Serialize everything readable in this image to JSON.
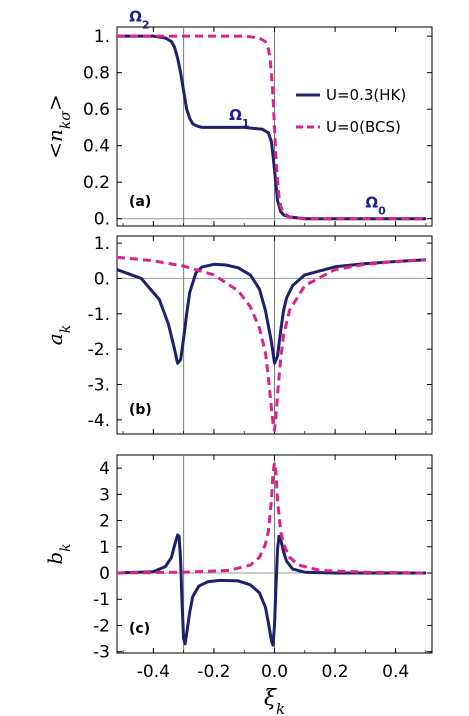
{
  "chart_data": [
    {
      "type": "line",
      "panel_label": "(a)",
      "ylabel_main": "<n",
      "ylabel_sub": "kσ",
      "ylabel_end": ">",
      "xlim": [
        -0.52,
        0.52
      ],
      "ylim": [
        -0.04,
        1.05
      ],
      "xticks": [
        -0.4,
        -0.2,
        0.0,
        0.2,
        0.4
      ],
      "yticks": [
        0.0,
        0.2,
        0.4,
        0.6,
        0.8,
        1.0
      ],
      "ytick_labels": [
        "0.",
        "0.2",
        "0.4",
        "0.6",
        "0.8",
        "1."
      ],
      "vlines": [
        -0.3,
        0.0
      ],
      "region_labels": [
        {
          "main": "Ω",
          "sub": "2",
          "x": -0.48,
          "y": 1.08
        },
        {
          "main": "Ω",
          "sub": "1",
          "x": -0.15,
          "y": 0.54
        },
        {
          "main": "Ω",
          "sub": "0",
          "x": 0.3,
          "y": 0.06
        }
      ],
      "legend": {
        "placement": "right",
        "entries": [
          "U=0.3(HK)",
          "U=0(BCS)"
        ]
      },
      "series": [
        {
          "name": "U=0.3(HK)",
          "color": "#1f1f6e",
          "dash": "solid",
          "x": [
            -0.52,
            -0.4,
            -0.36,
            -0.34,
            -0.33,
            -0.32,
            -0.31,
            -0.3,
            -0.29,
            -0.28,
            -0.27,
            -0.26,
            -0.24,
            -0.2,
            -0.1,
            -0.04,
            -0.02,
            -0.01,
            0.0,
            0.01,
            0.02,
            0.03,
            0.05,
            0.1,
            0.2,
            0.3,
            0.4,
            0.5
          ],
          "y": [
            1.0,
            1.0,
            0.99,
            0.97,
            0.94,
            0.88,
            0.8,
            0.7,
            0.6,
            0.55,
            0.52,
            0.51,
            0.5,
            0.5,
            0.5,
            0.49,
            0.47,
            0.42,
            0.27,
            0.1,
            0.04,
            0.02,
            0.01,
            0.0,
            0.0,
            0.0,
            0.0,
            0.0
          ]
        },
        {
          "name": "U=0(BCS)",
          "color": "#d9248b",
          "dash": "dashed",
          "x": [
            -0.52,
            -0.3,
            -0.1,
            -0.05,
            -0.03,
            -0.02,
            -0.015,
            -0.01,
            -0.005,
            0.0,
            0.005,
            0.01,
            0.015,
            0.02,
            0.03,
            0.05,
            0.1,
            0.3,
            0.5
          ],
          "y": [
            1.0,
            1.0,
            1.0,
            0.99,
            0.97,
            0.93,
            0.88,
            0.79,
            0.67,
            0.5,
            0.33,
            0.21,
            0.12,
            0.07,
            0.03,
            0.01,
            0.0,
            0.0,
            0.0
          ]
        }
      ]
    },
    {
      "type": "line",
      "panel_label": "(b)",
      "ylabel_main": "a",
      "ylabel_sub": "k",
      "xlim": [
        -0.52,
        0.52
      ],
      "ylim": [
        -4.4,
        1.2
      ],
      "xticks": [
        -0.4,
        -0.2,
        0.0,
        0.2,
        0.4
      ],
      "yticks": [
        -4,
        -3,
        -2,
        -1,
        0,
        1
      ],
      "ytick_labels": [
        "-4.",
        "-3.",
        "-2.",
        "-1.",
        "0.",
        "1."
      ],
      "vlines": [
        -0.3,
        0.0
      ],
      "series": [
        {
          "name": "U=0.3(HK)",
          "color": "#1f1f6e",
          "dash": "solid",
          "x": [
            -0.52,
            -0.44,
            -0.38,
            -0.35,
            -0.33,
            -0.32,
            -0.31,
            -0.3,
            -0.29,
            -0.28,
            -0.26,
            -0.24,
            -0.2,
            -0.16,
            -0.12,
            -0.08,
            -0.05,
            -0.03,
            -0.01,
            0.0,
            0.01,
            0.02,
            0.03,
            0.04,
            0.06,
            0.1,
            0.2,
            0.3,
            0.4,
            0.5
          ],
          "y": [
            0.25,
            0.0,
            -0.6,
            -1.3,
            -2.0,
            -2.4,
            -2.3,
            -1.7,
            -1.0,
            -0.4,
            0.15,
            0.32,
            0.4,
            0.38,
            0.3,
            0.1,
            -0.3,
            -0.9,
            -1.8,
            -2.4,
            -2.2,
            -1.5,
            -0.9,
            -0.55,
            -0.2,
            0.1,
            0.33,
            0.42,
            0.48,
            0.53
          ]
        },
        {
          "name": "U=0(BCS)",
          "color": "#d9248b",
          "dash": "dashed",
          "x": [
            -0.52,
            -0.4,
            -0.3,
            -0.2,
            -0.12,
            -0.08,
            -0.05,
            -0.03,
            -0.02,
            -0.01,
            -0.005,
            0.0,
            0.005,
            0.01,
            0.02,
            0.03,
            0.05,
            0.1,
            0.2,
            0.3,
            0.4,
            0.5
          ],
          "y": [
            0.6,
            0.5,
            0.35,
            0.1,
            -0.35,
            -0.8,
            -1.4,
            -2.1,
            -2.8,
            -3.7,
            -4.1,
            -4.3,
            -3.9,
            -3.3,
            -2.3,
            -1.6,
            -0.9,
            -0.2,
            0.25,
            0.4,
            0.48,
            0.53
          ]
        }
      ]
    },
    {
      "type": "line",
      "panel_label": "(c)",
      "ylabel_main": "b",
      "ylabel_sub": "k",
      "xlabel_main": "ξ",
      "xlabel_sub": "k",
      "xlim": [
        -0.52,
        0.52
      ],
      "ylim": [
        -3.05,
        4.5
      ],
      "xticks": [
        -0.4,
        -0.2,
        0.0,
        0.2,
        0.4
      ],
      "xtick_labels": [
        "-0.4",
        "-0.2",
        "0.0",
        "0.2",
        "0.4"
      ],
      "yticks": [
        -3,
        -2,
        -1,
        0,
        1,
        2,
        3,
        4
      ],
      "ytick_labels": [
        "-3",
        "-2",
        "-1",
        "0",
        "1",
        "2",
        "3",
        "4"
      ],
      "vlines": [
        -0.3,
        0.0
      ],
      "series": [
        {
          "name": "U=0.3(HK)",
          "color": "#1f1f6e",
          "dash": "solid",
          "x": [
            -0.52,
            -0.4,
            -0.36,
            -0.34,
            -0.33,
            -0.32,
            -0.315,
            -0.31,
            -0.305,
            -0.3,
            -0.295,
            -0.29,
            -0.28,
            -0.27,
            -0.25,
            -0.22,
            -0.18,
            -0.12,
            -0.08,
            -0.05,
            -0.03,
            -0.02,
            -0.01,
            -0.005,
            0.0,
            0.005,
            0.01,
            0.015,
            0.02,
            0.03,
            0.04,
            0.06,
            0.1,
            0.2,
            0.3,
            0.5
          ],
          "y": [
            0.0,
            0.05,
            0.25,
            0.6,
            1.05,
            1.45,
            1.4,
            0.5,
            -1.2,
            -2.5,
            -2.7,
            -2.3,
            -1.5,
            -0.9,
            -0.5,
            -0.33,
            -0.28,
            -0.3,
            -0.45,
            -0.75,
            -1.3,
            -1.9,
            -2.6,
            -2.75,
            -2.0,
            -0.5,
            0.9,
            1.4,
            1.3,
            0.8,
            0.45,
            0.15,
            0.03,
            0.0,
            0.0,
            0.0
          ]
        },
        {
          "name": "U=0(BCS)",
          "color": "#d9248b",
          "dash": "dashed",
          "x": [
            -0.52,
            -0.3,
            -0.15,
            -0.08,
            -0.05,
            -0.03,
            -0.02,
            -0.01,
            -0.005,
            0.0,
            0.005,
            0.01,
            0.02,
            0.03,
            0.05,
            0.08,
            0.15,
            0.3,
            0.5
          ],
          "y": [
            0.0,
            0.03,
            0.1,
            0.3,
            0.6,
            1.1,
            1.6,
            2.8,
            3.8,
            4.2,
            3.8,
            2.8,
            1.6,
            1.1,
            0.6,
            0.3,
            0.1,
            0.03,
            0.0
          ]
        }
      ]
    }
  ]
}
